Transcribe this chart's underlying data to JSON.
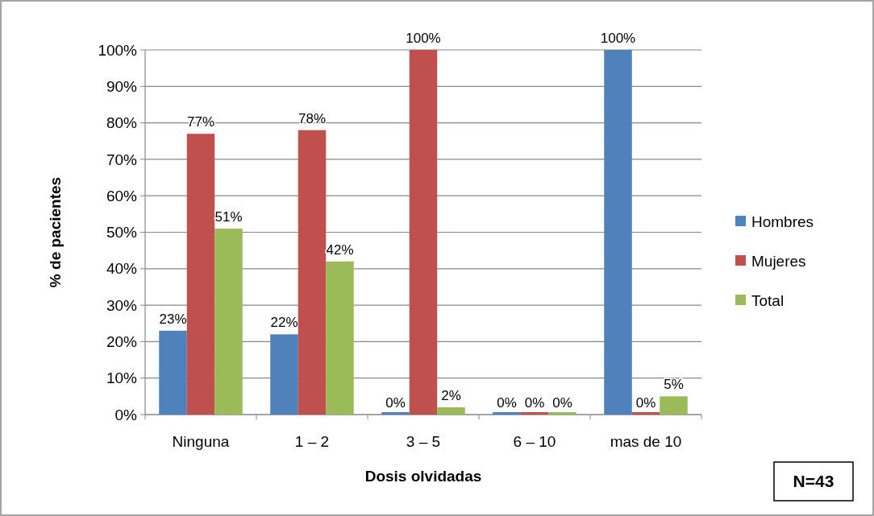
{
  "chart_data": {
    "type": "bar",
    "xlabel": "Dosis olvidadas",
    "ylabel": "% de pacientes",
    "categories": [
      "Ninguna",
      "1 – 2",
      "3 – 5",
      "6 – 10",
      "mas de 10"
    ],
    "series": [
      {
        "name": "Hombres",
        "color": "#4f81bd",
        "values": [
          23,
          22,
          0,
          0,
          100
        ],
        "value_labels": [
          "23%",
          "22%",
          "0%",
          "0%",
          "100%"
        ]
      },
      {
        "name": "Mujeres",
        "color": "#c0504d",
        "values": [
          77,
          78,
          100,
          0,
          0
        ],
        "value_labels": [
          "77%",
          "78%",
          "100%",
          "0%",
          "0%"
        ]
      },
      {
        "name": "Total",
        "color": "#9bbb59",
        "values": [
          51,
          42,
          2,
          0,
          5
        ],
        "value_labels": [
          "51%",
          "42%",
          "2%",
          "0%",
          "5%"
        ]
      }
    ],
    "ylim": [
      0,
      100
    ],
    "yticks": [
      {
        "value": 0,
        "label": "0%"
      },
      {
        "value": 10,
        "label": "10%"
      },
      {
        "value": 20,
        "label": "20%"
      },
      {
        "value": 30,
        "label": "30%"
      },
      {
        "value": 40,
        "label": "40%"
      },
      {
        "value": 50,
        "label": "50%"
      },
      {
        "value": 60,
        "label": "60%"
      },
      {
        "value": 70,
        "label": "70%"
      },
      {
        "value": 80,
        "label": "80%"
      },
      {
        "value": 90,
        "label": "90%"
      },
      {
        "value": 100,
        "label": "100%"
      }
    ],
    "grid": "y",
    "legend": "right",
    "annotations": [
      "N=43"
    ]
  }
}
